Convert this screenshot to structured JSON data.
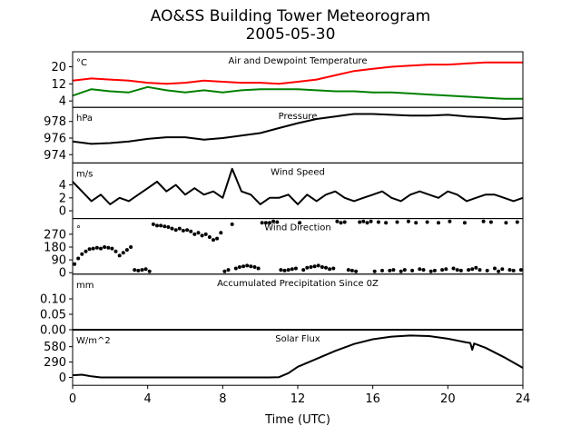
{
  "figure": {
    "title_line1": "AO&SS Building Tower Meteorogram",
    "title_line2": "2005-05-30",
    "xlabel": "Time (UTC)",
    "x_ticks": [
      0,
      4,
      8,
      12,
      16,
      20,
      24
    ],
    "xlim": [
      0,
      24
    ]
  },
  "chart_data": [
    {
      "type": "line",
      "title": "Air and Dewpoint Temperature",
      "unit_label": "°C",
      "ylim": [
        1,
        27
      ],
      "y_ticks": [
        4,
        12,
        20
      ],
      "x": [
        0,
        1,
        2,
        3,
        4,
        5,
        6,
        7,
        8,
        9,
        10,
        11,
        12,
        13,
        14,
        15,
        16,
        17,
        18,
        19,
        20,
        21,
        22,
        23,
        24
      ],
      "series": [
        {
          "color": "#ff0000",
          "values": [
            13.5,
            14.5,
            14.0,
            13.5,
            12.5,
            12.0,
            12.5,
            13.5,
            13.0,
            12.5,
            12.5,
            12.0,
            13.0,
            14.0,
            16.0,
            18.0,
            19.0,
            20.0,
            20.5,
            21.0,
            21.0,
            21.5,
            22.0,
            22.0,
            22.0
          ]
        },
        {
          "color": "#008000",
          "values": [
            6.5,
            9.5,
            8.5,
            8.0,
            10.5,
            9.0,
            8.0,
            9.0,
            8.0,
            9.0,
            9.5,
            9.5,
            9.5,
            9.0,
            8.5,
            8.5,
            8.0,
            8.0,
            7.5,
            7.0,
            6.5,
            6.0,
            5.5,
            5.0,
            5.0
          ]
        }
      ]
    },
    {
      "type": "line",
      "title": "Pressure",
      "unit_label": "hPa",
      "ylim": [
        973.0,
        979.7
      ],
      "y_ticks": [
        974,
        976,
        978
      ],
      "x": [
        0,
        1,
        2,
        3,
        4,
        5,
        6,
        7,
        8,
        9,
        10,
        11,
        12,
        13,
        14,
        15,
        16,
        17,
        18,
        19,
        20,
        21,
        22,
        23,
        24
      ],
      "series": [
        {
          "color": "#000000",
          "values": [
            975.6,
            975.3,
            975.4,
            975.6,
            975.9,
            976.1,
            976.1,
            975.8,
            976.0,
            976.3,
            976.6,
            977.2,
            977.8,
            978.3,
            978.6,
            978.9,
            978.9,
            978.8,
            978.7,
            978.7,
            978.8,
            978.6,
            978.5,
            978.3,
            978.4
          ]
        }
      ]
    },
    {
      "type": "line",
      "title": "Wind Speed",
      "unit_label": "m/s",
      "ylim": [
        -1.2,
        7.4
      ],
      "y_ticks": [
        0,
        2,
        4
      ],
      "x": [
        0,
        0.5,
        1,
        1.5,
        2,
        2.5,
        3,
        3.5,
        4,
        4.5,
        5,
        5.5,
        6,
        6.5,
        7,
        7.5,
        8,
        8.5,
        9,
        9.5,
        10,
        10.5,
        11,
        11.5,
        12,
        12.5,
        13,
        13.5,
        14,
        14.5,
        15,
        15.5,
        16,
        16.5,
        17,
        17.5,
        18,
        18.5,
        19,
        19.5,
        20,
        20.5,
        21,
        21.5,
        22,
        22.5,
        23,
        23.5,
        24
      ],
      "series": [
        {
          "color": "#000000",
          "values": [
            4.5,
            3.0,
            1.5,
            2.5,
            1.0,
            2.0,
            1.5,
            2.5,
            3.5,
            4.5,
            3.0,
            4.0,
            2.5,
            3.5,
            2.5,
            3.0,
            2.0,
            6.5,
            3.0,
            2.5,
            1.0,
            2.0,
            2.0,
            2.5,
            1.0,
            2.5,
            1.5,
            2.5,
            3.0,
            2.0,
            1.5,
            2.0,
            2.5,
            3.0,
            2.0,
            1.5,
            2.5,
            3.0,
            2.5,
            2.0,
            3.0,
            2.5,
            1.5,
            2.0,
            2.5,
            2.5,
            2.0,
            1.5,
            2.0
          ]
        }
      ]
    },
    {
      "type": "scatter",
      "title": "Wind Direction",
      "unit_label": "°",
      "ylim": [
        -10,
        380
      ],
      "y_ticks": [
        0,
        90,
        180,
        270
      ],
      "x": [
        0.1,
        0.3,
        0.5,
        0.7,
        0.9,
        1.1,
        1.3,
        1.5,
        1.7,
        1.9,
        2.1,
        2.3,
        2.5,
        2.7,
        2.9,
        3.1,
        3.3,
        3.5,
        3.7,
        3.9,
        4.1,
        4.3,
        4.5,
        4.7,
        4.9,
        5.1,
        5.3,
        5.5,
        5.7,
        5.9,
        6.1,
        6.3,
        6.5,
        6.7,
        6.9,
        7.1,
        7.3,
        7.5,
        7.7,
        7.9,
        8.1,
        8.3,
        8.5,
        8.7,
        8.9,
        9.1,
        9.3,
        9.5,
        9.7,
        9.9,
        10.1,
        10.3,
        10.5,
        10.7,
        10.9,
        11.1,
        11.3,
        11.5,
        11.7,
        11.9,
        12.1,
        12.3,
        12.5,
        12.7,
        12.9,
        13.1,
        13.3,
        13.5,
        13.7,
        13.9,
        14.1,
        14.3,
        14.5,
        14.7,
        14.9,
        15.1,
        15.3,
        15.5,
        15.7,
        15.9,
        16.1,
        16.3,
        16.5,
        16.7,
        16.9,
        17.1,
        17.3,
        17.5,
        17.7,
        17.9,
        18.1,
        18.3,
        18.5,
        18.7,
        18.9,
        19.1,
        19.3,
        19.5,
        19.7,
        19.9,
        20.1,
        20.3,
        20.5,
        20.7,
        20.9,
        21.1,
        21.3,
        21.5,
        21.7,
        21.9,
        22.1,
        22.3,
        22.5,
        22.7,
        22.9,
        23.1,
        23.3,
        23.5,
        23.7,
        23.9
      ],
      "series": [
        {
          "color": "#000000",
          "values": [
            60,
            100,
            130,
            150,
            165,
            170,
            175,
            170,
            180,
            175,
            170,
            150,
            120,
            140,
            160,
            180,
            20,
            15,
            20,
            25,
            10,
            340,
            330,
            330,
            325,
            320,
            310,
            300,
            310,
            295,
            300,
            290,
            270,
            280,
            260,
            270,
            250,
            230,
            240,
            280,
            10,
            20,
            340,
            30,
            40,
            45,
            50,
            45,
            40,
            30,
            350,
            350,
            350,
            360,
            355,
            20,
            15,
            20,
            25,
            30,
            350,
            20,
            35,
            40,
            45,
            50,
            40,
            35,
            25,
            30,
            360,
            350,
            355,
            20,
            15,
            10,
            355,
            360,
            350,
            360,
            10,
            355,
            15,
            350,
            15,
            20,
            355,
            10,
            20,
            360,
            15,
            350,
            25,
            20,
            355,
            10,
            15,
            350,
            20,
            25,
            360,
            30,
            20,
            15,
            350,
            20,
            25,
            35,
            20,
            360,
            15,
            355,
            30,
            10,
            25,
            350,
            20,
            15,
            355,
            20
          ]
        }
      ]
    },
    {
      "type": "line",
      "title": "Accumulated Precipitation Since 0Z",
      "unit_label": "mm",
      "ylim": [
        0,
        0.18
      ],
      "y_ticks": [
        0.0,
        0.05,
        0.1
      ],
      "y_tick_labels": [
        "0.00",
        "0.05",
        "0.10"
      ],
      "x": [
        0,
        24
      ],
      "series": [
        {
          "color": "#000000",
          "values": [
            0,
            0
          ]
        }
      ]
    },
    {
      "type": "line",
      "title": "Solar Flux",
      "unit_label": "W/m^2",
      "ylim": [
        -150,
        900
      ],
      "y_ticks": [
        0,
        290,
        580
      ],
      "x": [
        0,
        0.5,
        1,
        1.5,
        2,
        4,
        6,
        8,
        10,
        10.5,
        11,
        11.5,
        12,
        13,
        14,
        15,
        16,
        17,
        18,
        19,
        20,
        21,
        21.2,
        21.3,
        21.4,
        22,
        23,
        24
      ],
      "series": [
        {
          "color": "#000000",
          "values": [
            40,
            50,
            20,
            0,
            0,
            0,
            0,
            0,
            0,
            0,
            5,
            80,
            200,
            350,
            500,
            630,
            720,
            770,
            790,
            780,
            730,
            660,
            650,
            520,
            640,
            560,
            380,
            180
          ]
        }
      ]
    }
  ]
}
